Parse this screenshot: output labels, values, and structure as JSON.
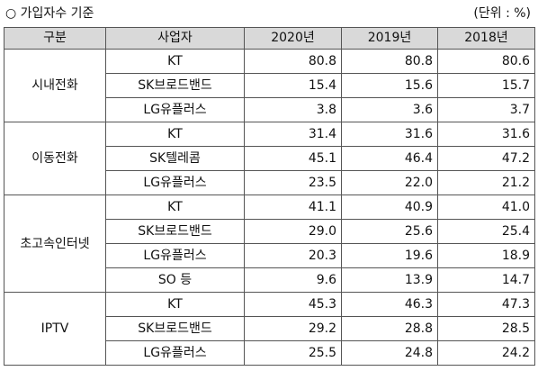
{
  "header": {
    "basis": "○  가입자수 기준",
    "unit": "(단위 : %)"
  },
  "table": {
    "columns": [
      "구분",
      "사업자",
      "2020년",
      "2019년",
      "2018년"
    ],
    "groups": [
      {
        "category": "시내전화",
        "rows": [
          {
            "operator": "KT",
            "values": [
              "80.8",
              "80.8",
              "80.6"
            ]
          },
          {
            "operator": "SK브로드밴드",
            "values": [
              "15.4",
              "15.6",
              "15.7"
            ]
          },
          {
            "operator": "LG유플러스",
            "values": [
              "3.8",
              "3.6",
              "3.7"
            ]
          }
        ]
      },
      {
        "category": "이동전화",
        "rows": [
          {
            "operator": "KT",
            "values": [
              "31.4",
              "31.6",
              "31.6"
            ]
          },
          {
            "operator": "SK텔레콤",
            "values": [
              "45.1",
              "46.4",
              "47.2"
            ]
          },
          {
            "operator": "LG유플러스",
            "values": [
              "23.5",
              "22.0",
              "21.2"
            ]
          }
        ]
      },
      {
        "category": "초고속인터넷",
        "rows": [
          {
            "operator": "KT",
            "values": [
              "41.1",
              "40.9",
              "41.0"
            ]
          },
          {
            "operator": "SK브로드밴드",
            "values": [
              "29.0",
              "25.6",
              "25.4"
            ]
          },
          {
            "operator": "LG유플러스",
            "values": [
              "20.3",
              "19.6",
              "18.9"
            ]
          },
          {
            "operator": "SO 등",
            "values": [
              "9.6",
              "13.9",
              "14.7"
            ]
          }
        ]
      },
      {
        "category": "IPTV",
        "rows": [
          {
            "operator": "KT",
            "values": [
              "45.3",
              "46.3",
              "47.3"
            ]
          },
          {
            "operator": "SK브로드밴드",
            "values": [
              "29.2",
              "28.8",
              "28.5"
            ]
          },
          {
            "operator": "LG유플러스",
            "values": [
              "25.5",
              "24.8",
              "24.2"
            ]
          }
        ]
      }
    ]
  }
}
